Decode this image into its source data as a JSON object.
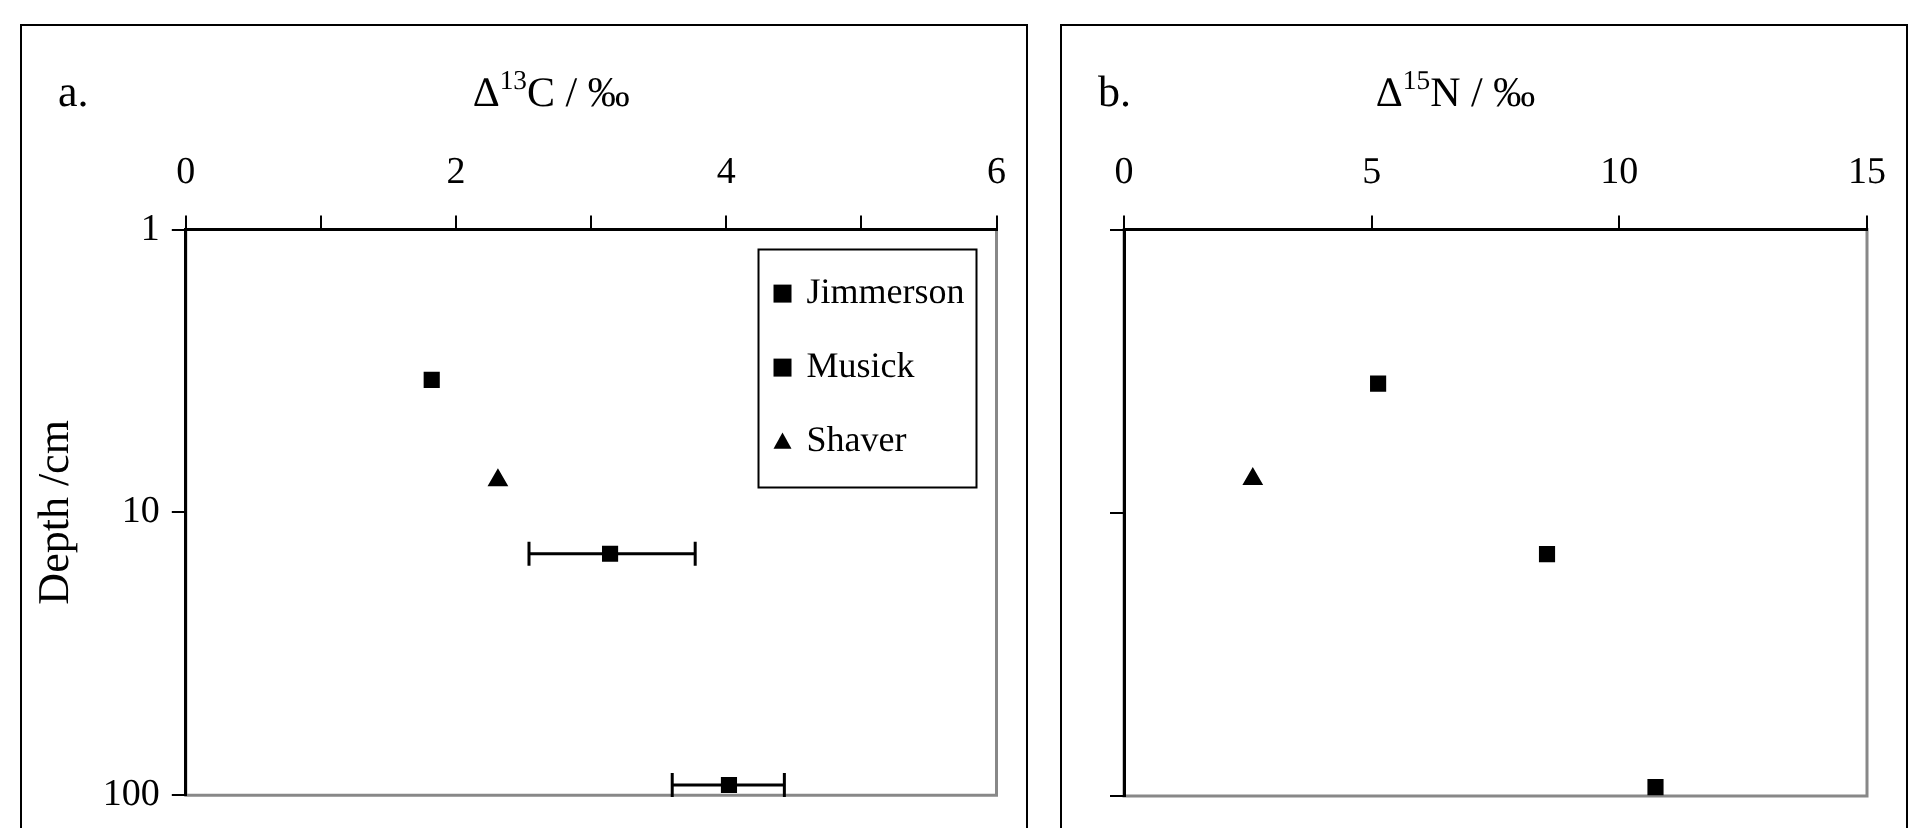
{
  "chart_data": [
    {
      "type": "scatter",
      "title": "a.",
      "xlabel": "Δ$^{13}$C / ‰",
      "ylabel": "Depth /cm",
      "xlim": [
        0,
        6
      ],
      "xticks": [
        0,
        {
          "value": 1,
          "label": null
        },
        2,
        {
          "value": 3,
          "label": null
        },
        4,
        {
          "value": 5,
          "label": null
        },
        6
      ],
      "ylim": [
        100,
        1
      ],
      "yticks": [
        1,
        10,
        100
      ],
      "log": "y",
      "legend": "top right",
      "series": [
        {
          "name": "Jimmerson",
          "color": "#000000",
          "marker": "square",
          "x": [
            3.14,
            4.02
          ],
          "values": [
            14,
            92
          ],
          "xerrors": [
            [
              2.54,
              3.77
            ],
            [
              3.6,
              4.43
            ]
          ]
        },
        {
          "name": "Musick",
          "color": "#000000",
          "marker": "square",
          "x": [
            1.82
          ],
          "values": [
            3.4
          ]
        },
        {
          "name": "Shaver",
          "color": "#000000",
          "marker": "triangle",
          "x": [
            2.31
          ],
          "values": [
            7.7
          ]
        }
      ]
    },
    {
      "type": "scatter",
      "title": "b.",
      "xlabel": "Δ$^{15}$N / ‰",
      "xlim": [
        0,
        15
      ],
      "xticks": [
        0,
        5,
        10,
        15
      ],
      "ylim": [
        100,
        1
      ],
      "yticks": [
        1,
        10,
        100
      ],
      "log": "y",
      "tick_labels": "x",
      "series": [
        {
          "color": "#000000",
          "marker": "square",
          "x": [
            8.54,
            10.73
          ],
          "values": [
            14,
            93
          ]
        },
        {
          "color": "#000000",
          "marker": "square",
          "x": [
            5.13
          ],
          "values": [
            3.5
          ]
        },
        {
          "color": "#000000",
          "marker": "triangle",
          "x": [
            2.6
          ],
          "values": [
            7.6
          ]
        }
      ]
    }
  ]
}
